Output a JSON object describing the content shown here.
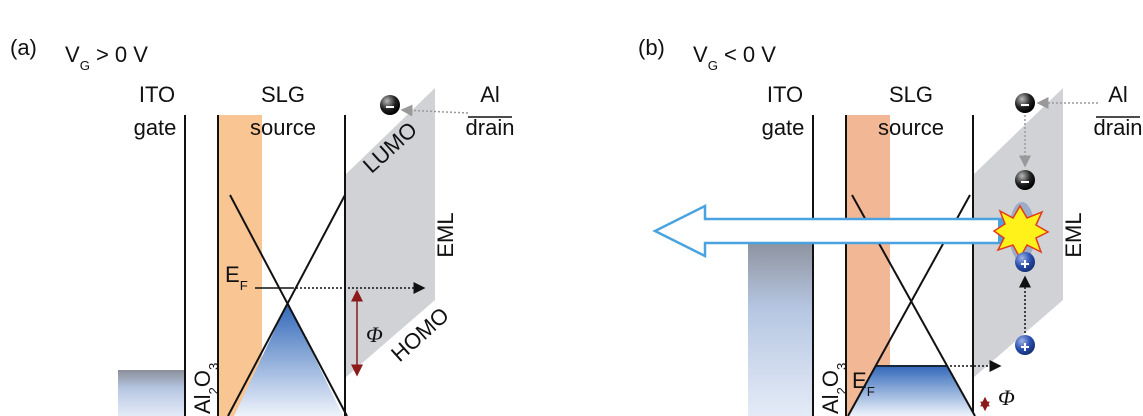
{
  "panels": [
    {
      "label": "(a)",
      "bias": {
        "symbol": "V",
        "subscript": "G",
        "condition": "> 0 V"
      },
      "gate": {
        "material": "ITO",
        "role": "gate"
      },
      "source": {
        "material": "SLG",
        "role": "source"
      },
      "drain": {
        "material": "Al",
        "role": "drain"
      },
      "dielectric": {
        "element": "Al",
        "element_count": "2",
        "oxygen": "O",
        "oxygen_count": "3"
      },
      "layer": "EML",
      "levels": {
        "lumo": "LUMO",
        "homo": "HOMO"
      },
      "fermi": {
        "symbol": "E",
        "subscript": "F"
      },
      "barrier": "Φ"
    },
    {
      "label": "(b)",
      "bias": {
        "symbol": "V",
        "subscript": "G",
        "condition": "< 0 V"
      },
      "gate": {
        "material": "ITO",
        "role": "gate"
      },
      "source": {
        "material": "SLG",
        "role": "source"
      },
      "drain": {
        "material": "Al",
        "role": "drain"
      },
      "dielectric": {
        "element": "Al",
        "element_count": "2",
        "oxygen": "O",
        "oxygen_count": "3"
      },
      "layer": "EML",
      "fermi": {
        "symbol": "E",
        "subscript": "F"
      },
      "barrier": "Φ"
    }
  ]
}
